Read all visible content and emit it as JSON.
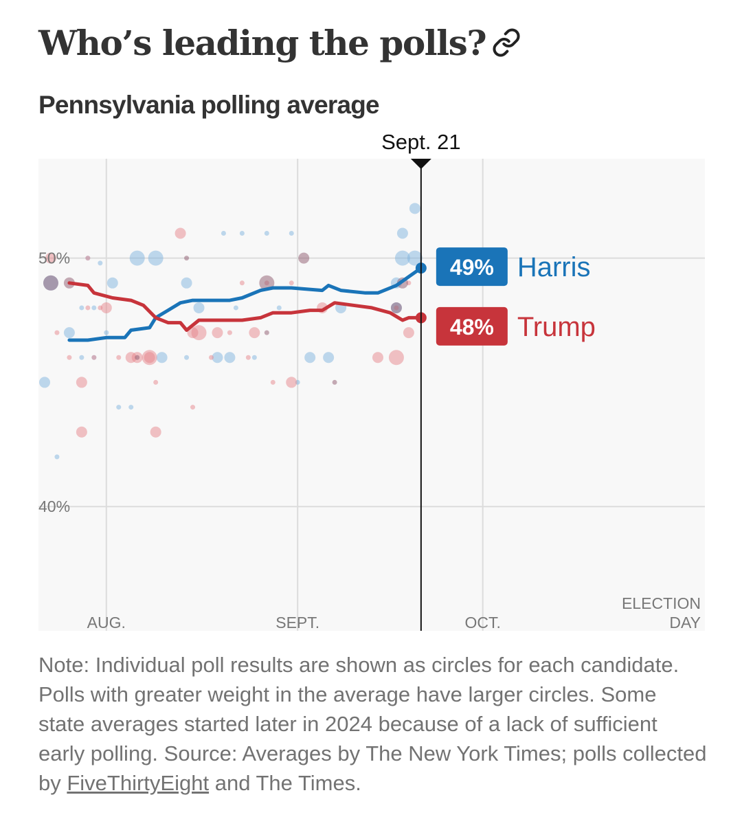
{
  "header": {
    "title": "Who’s leading the polls?",
    "link_icon": "link-icon"
  },
  "chart_title": "Pennsylvania polling average",
  "chart_data": {
    "type": "line",
    "title": "Pennsylvania polling average",
    "x_axis": {
      "ticks": [
        {
          "label": "AUG.",
          "date": "Aug 1"
        },
        {
          "label": "SEPT.",
          "date": "Sep 1"
        },
        {
          "label": "OCT.",
          "date": "Oct 1"
        }
      ],
      "end_label_line1": "ELECTION",
      "end_label_line2": "DAY",
      "range_days": [
        -11,
        97
      ]
    },
    "y_axis": {
      "ticks": [
        {
          "value": 50,
          "label": "50%"
        },
        {
          "value": 40,
          "label": "40%"
        }
      ],
      "range": [
        35,
        54
      ]
    },
    "marker": {
      "label": "Sept. 21",
      "day": 51
    },
    "series": [
      {
        "name": "Harris",
        "label": "49%",
        "color": "#1a74b8",
        "dot_color": "#7fb3de",
        "values": [
          [
            -6,
            46.7
          ],
          [
            -3,
            46.7
          ],
          [
            0,
            46.8
          ],
          [
            3,
            46.8
          ],
          [
            4,
            47.1
          ],
          [
            7,
            47.2
          ],
          [
            8,
            47.6
          ],
          [
            10,
            47.9
          ],
          [
            12,
            48.2
          ],
          [
            14,
            48.3
          ],
          [
            16,
            48.3
          ],
          [
            20,
            48.3
          ],
          [
            22,
            48.4
          ],
          [
            25,
            48.7
          ],
          [
            27,
            48.8
          ],
          [
            30,
            48.8
          ],
          [
            35,
            48.7
          ],
          [
            36,
            48.9
          ],
          [
            38,
            48.7
          ],
          [
            42,
            48.6
          ],
          [
            44,
            48.6
          ],
          [
            47,
            48.9
          ],
          [
            51,
            49.6
          ]
        ],
        "polls": [
          [
            -9,
            49.0,
            2
          ],
          [
            -3,
            50.0,
            0
          ],
          [
            -1,
            49.8,
            0
          ],
          [
            5,
            50.0,
            2
          ],
          [
            8,
            50.0,
            2
          ],
          [
            13,
            49.0,
            1
          ],
          [
            15,
            48.0,
            1
          ],
          [
            -6,
            47.0,
            1
          ],
          [
            -4,
            48.0,
            0
          ],
          [
            -2,
            48.0,
            0
          ],
          [
            0,
            47.0,
            0
          ],
          [
            1,
            49.0,
            1
          ],
          [
            -4,
            46.0,
            0
          ],
          [
            -2,
            46.0,
            0
          ],
          [
            9,
            46.0,
            1
          ],
          [
            13,
            46.0,
            0
          ],
          [
            18,
            46.0,
            1
          ],
          [
            20,
            46.0,
            1
          ],
          [
            24,
            46.0,
            0
          ],
          [
            -10,
            45.0,
            1
          ],
          [
            2,
            44.0,
            0
          ],
          [
            4,
            44.0,
            0
          ],
          [
            -8,
            42.0,
            0
          ],
          [
            21,
            48.0,
            0
          ],
          [
            28,
            48.0,
            0
          ],
          [
            33,
            46.0,
            1
          ],
          [
            36,
            46.0,
            1
          ],
          [
            31,
            45.0,
            0
          ],
          [
            38,
            48.0,
            1
          ],
          [
            47,
            49.0,
            1
          ],
          [
            48,
            51.0,
            1
          ],
          [
            48,
            50.0,
            2
          ],
          [
            50,
            50.0,
            2
          ],
          [
            50,
            52.0,
            1
          ],
          [
            47,
            48.0,
            1
          ],
          [
            19,
            51.0,
            0
          ],
          [
            22,
            51.0,
            0
          ],
          [
            26,
            51.0,
            0
          ],
          [
            30,
            51.0,
            0
          ]
        ]
      },
      {
        "name": "Trump",
        "label": "48%",
        "color": "#c7343b",
        "dot_color": "#e5868b",
        "values": [
          [
            -6,
            49.0
          ],
          [
            -3,
            48.9
          ],
          [
            -2,
            48.6
          ],
          [
            1,
            48.4
          ],
          [
            4,
            48.3
          ],
          [
            6,
            48.1
          ],
          [
            8,
            47.6
          ],
          [
            10,
            47.4
          ],
          [
            12,
            47.4
          ],
          [
            13,
            47.1
          ],
          [
            15,
            47.5
          ],
          [
            18,
            47.5
          ],
          [
            22,
            47.5
          ],
          [
            25,
            47.6
          ],
          [
            27,
            47.8
          ],
          [
            30,
            47.8
          ],
          [
            33,
            47.9
          ],
          [
            35,
            47.9
          ],
          [
            37,
            48.2
          ],
          [
            40,
            48.1
          ],
          [
            43,
            48.0
          ],
          [
            46,
            47.8
          ],
          [
            48,
            47.5
          ],
          [
            49,
            47.6
          ],
          [
            51,
            47.6
          ]
        ],
        "polls": [
          [
            -9,
            50.0,
            1
          ],
          [
            -3,
            50.0,
            0
          ],
          [
            -8,
            47.0,
            0
          ],
          [
            0,
            48.0,
            1
          ],
          [
            -1,
            48.0,
            0
          ],
          [
            -3,
            48.0,
            0
          ],
          [
            7,
            46.0,
            1
          ],
          [
            14,
            47.0,
            1
          ],
          [
            18,
            47.0,
            1
          ],
          [
            20,
            47.0,
            0
          ],
          [
            4,
            46.0,
            1
          ],
          [
            7,
            46.0,
            2
          ],
          [
            2,
            46.0,
            0
          ],
          [
            -2,
            46.0,
            0
          ],
          [
            -6,
            46.0,
            0
          ],
          [
            -4,
            45.0,
            1
          ],
          [
            8,
            45.0,
            0
          ],
          [
            27,
            45.0,
            0
          ],
          [
            30,
            45.0,
            1
          ],
          [
            12,
            51.0,
            1
          ],
          [
            15,
            47.0,
            2
          ],
          [
            26,
            49.0,
            0
          ],
          [
            30,
            49.0,
            0
          ],
          [
            35,
            48.0,
            1
          ],
          [
            44,
            46.0,
            1
          ],
          [
            47,
            46.0,
            2
          ],
          [
            49,
            47.0,
            1
          ],
          [
            49,
            49.0,
            0
          ],
          [
            47,
            48.0,
            0
          ],
          [
            22,
            49.0,
            0
          ],
          [
            24,
            47.0,
            1
          ],
          [
            -4,
            43.0,
            1
          ],
          [
            8,
            43.0,
            1
          ],
          [
            14,
            44.0,
            0
          ],
          [
            5,
            46.0,
            1
          ],
          [
            17,
            46.0,
            0
          ],
          [
            23,
            46.0,
            0
          ]
        ]
      },
      {
        "name": "overlap",
        "dot_color": "#8e5a6e",
        "polls": [
          [
            -9,
            49.0,
            2
          ],
          [
            -6,
            49.0,
            1
          ],
          [
            26,
            49.0,
            2
          ],
          [
            32,
            50.0,
            1
          ],
          [
            48,
            49.0,
            1
          ],
          [
            13,
            50.0,
            0
          ],
          [
            47,
            48.0,
            1
          ],
          [
            26,
            47.0,
            0
          ],
          [
            37,
            45.0,
            0
          ],
          [
            5,
            46.0,
            0
          ]
        ]
      }
    ],
    "grid": true
  },
  "note": {
    "text_before": "Note: Individual poll results are shown as circles for each candidate. Polls with greater weight in the average have larger circles. Some state averages started later in 2024 because of a lack of sufficient early polling. Source: Averages by The New York Times; polls collected by ",
    "link_text": "FiveThirtyEight",
    "text_after": " and The Times."
  }
}
